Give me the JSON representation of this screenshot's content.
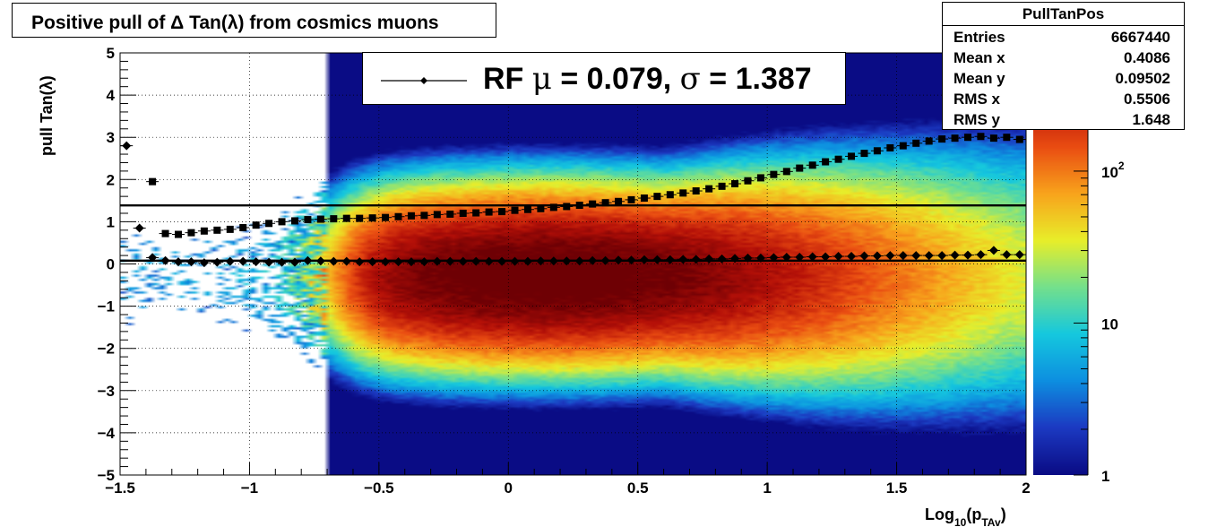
{
  "title": "Positive pull of Δ Tan(λ) from cosmics muons",
  "stats": {
    "name": "PullTanPos",
    "rows": [
      {
        "label": "Entries",
        "value": "6667440"
      },
      {
        "label": "Mean x",
        "value": "0.4086"
      },
      {
        "label": "Mean y",
        "value": "0.09502"
      },
      {
        "label": "RMS x",
        "value": "0.5506"
      },
      {
        "label": "RMS y",
        "value": "1.648"
      }
    ]
  },
  "legend": {
    "prefix": "RF ",
    "mu_symbol": "μ",
    "mid": " =  0.079, ",
    "sigma_symbol": "σ",
    "suffix": " =   1.387"
  },
  "colors": {
    "line": "#000000",
    "palette": [
      "#0a0c85",
      "#1c3ac2",
      "#0d8fe0",
      "#15c8de",
      "#74e08c",
      "#e8ee2a",
      "#f8a41c",
      "#ea4d12",
      "#b51008",
      "#6e0004"
    ]
  },
  "chart_data": {
    "type": "heatmap",
    "title": "Positive pull of Δ Tan(λ) from cosmics muons",
    "xlabel": "Log10(pTAv)",
    "xlabel_parts": {
      "main": "Log",
      "sub1": "10",
      "open": "(p",
      "sub2": "TAv",
      "close": ")"
    },
    "ylabel": "pull Tan(λ)",
    "xlim": [
      -1.5,
      2
    ],
    "ylim": [
      -5,
      5
    ],
    "xticks": [
      -1.5,
      -1,
      -0.5,
      0,
      0.5,
      1,
      1.5,
      2
    ],
    "xtick_labels": [
      "−1.5",
      "−1",
      "−0.5",
      "0",
      "0.5",
      "1",
      "1.5",
      "2"
    ],
    "yticks": [
      -5,
      -4,
      -3,
      -2,
      -1,
      0,
      1,
      2,
      3,
      4,
      5
    ],
    "ytick_labels": [
      "−5",
      "−4",
      "−3",
      "−2",
      "−1",
      "0",
      "1",
      "2",
      "3",
      "4",
      "5"
    ],
    "grid": true,
    "z_scale": "log",
    "zlim": [
      1,
      600
    ],
    "zticks": [
      {
        "value": 1,
        "label": "1"
      },
      {
        "value": 10,
        "label": "10"
      },
      {
        "value": 100,
        "label": "10",
        "exp": "2"
      }
    ],
    "density": {
      "peak_x": 0.15,
      "peak_y": -0.3,
      "x_rise_start": -0.9
    },
    "fit_mean_line": 0.079,
    "fit_sigma_line": 1.387,
    "series": [
      {
        "name": "mean",
        "marker": "diamond",
        "x": [
          -1.475,
          -1.425,
          -1.375,
          -1.325,
          -1.275,
          -1.225,
          -1.175,
          -1.125,
          -1.075,
          -1.025,
          -0.975,
          -0.925,
          -0.875,
          -0.825,
          -0.775,
          -0.725,
          -0.675,
          -0.625,
          -0.575,
          -0.525,
          -0.475,
          -0.425,
          -0.375,
          -0.325,
          -0.275,
          -0.225,
          -0.175,
          -0.125,
          -0.075,
          -0.025,
          0.025,
          0.075,
          0.125,
          0.175,
          0.225,
          0.275,
          0.325,
          0.375,
          0.425,
          0.475,
          0.525,
          0.575,
          0.625,
          0.675,
          0.725,
          0.775,
          0.825,
          0.875,
          0.925,
          0.975,
          1.025,
          1.075,
          1.125,
          1.175,
          1.225,
          1.275,
          1.325,
          1.375,
          1.425,
          1.475,
          1.525,
          1.575,
          1.625,
          1.675,
          1.725,
          1.775,
          1.825,
          1.875,
          1.925,
          1.975
        ],
        "y": [
          2.8,
          0.85,
          0.15,
          0.08,
          0.05,
          0.05,
          0.03,
          0.04,
          0.06,
          0.06,
          0.05,
          0.04,
          0.04,
          0.04,
          0.08,
          0.07,
          0.06,
          0.06,
          0.05,
          0.05,
          0.05,
          0.05,
          0.05,
          0.05,
          0.06,
          0.06,
          0.06,
          0.06,
          0.06,
          0.06,
          0.06,
          0.06,
          0.07,
          0.07,
          0.07,
          0.07,
          0.08,
          0.08,
          0.09,
          0.09,
          0.1,
          0.1,
          0.1,
          0.11,
          0.11,
          0.12,
          0.12,
          0.13,
          0.14,
          0.14,
          0.15,
          0.16,
          0.16,
          0.17,
          0.17,
          0.18,
          0.18,
          0.19,
          0.19,
          0.2,
          0.2,
          0.2,
          0.2,
          0.2,
          0.21,
          0.21,
          0.22,
          0.32,
          0.22,
          0.22
        ]
      },
      {
        "name": "sigma",
        "marker": "square",
        "x": [
          -1.375,
          -1.325,
          -1.275,
          -1.225,
          -1.175,
          -1.125,
          -1.075,
          -1.025,
          -0.975,
          -0.925,
          -0.875,
          -0.825,
          -0.775,
          -0.725,
          -0.675,
          -0.625,
          -0.575,
          -0.525,
          -0.475,
          -0.425,
          -0.375,
          -0.325,
          -0.275,
          -0.225,
          -0.175,
          -0.125,
          -0.075,
          -0.025,
          0.025,
          0.075,
          0.125,
          0.175,
          0.225,
          0.275,
          0.325,
          0.375,
          0.425,
          0.475,
          0.525,
          0.575,
          0.625,
          0.675,
          0.725,
          0.775,
          0.825,
          0.875,
          0.925,
          0.975,
          1.025,
          1.075,
          1.125,
          1.175,
          1.225,
          1.275,
          1.325,
          1.375,
          1.425,
          1.475,
          1.525,
          1.575,
          1.625,
          1.675,
          1.725,
          1.775,
          1.825,
          1.875,
          1.925,
          1.975
        ],
        "y": [
          1.95,
          0.72,
          0.7,
          0.74,
          0.78,
          0.8,
          0.82,
          0.86,
          0.92,
          0.96,
          1.0,
          1.02,
          1.05,
          1.06,
          1.07,
          1.08,
          1.08,
          1.09,
          1.1,
          1.12,
          1.14,
          1.15,
          1.17,
          1.18,
          1.2,
          1.21,
          1.23,
          1.24,
          1.27,
          1.29,
          1.31,
          1.34,
          1.36,
          1.39,
          1.42,
          1.45,
          1.48,
          1.52,
          1.56,
          1.6,
          1.64,
          1.68,
          1.73,
          1.78,
          1.84,
          1.9,
          1.97,
          2.04,
          2.12,
          2.19,
          2.27,
          2.34,
          2.42,
          2.48,
          2.55,
          2.62,
          2.68,
          2.75,
          2.8,
          2.86,
          2.91,
          2.96,
          2.98,
          3.0,
          3.02,
          2.98,
          3.0,
          2.95
        ]
      }
    ]
  }
}
